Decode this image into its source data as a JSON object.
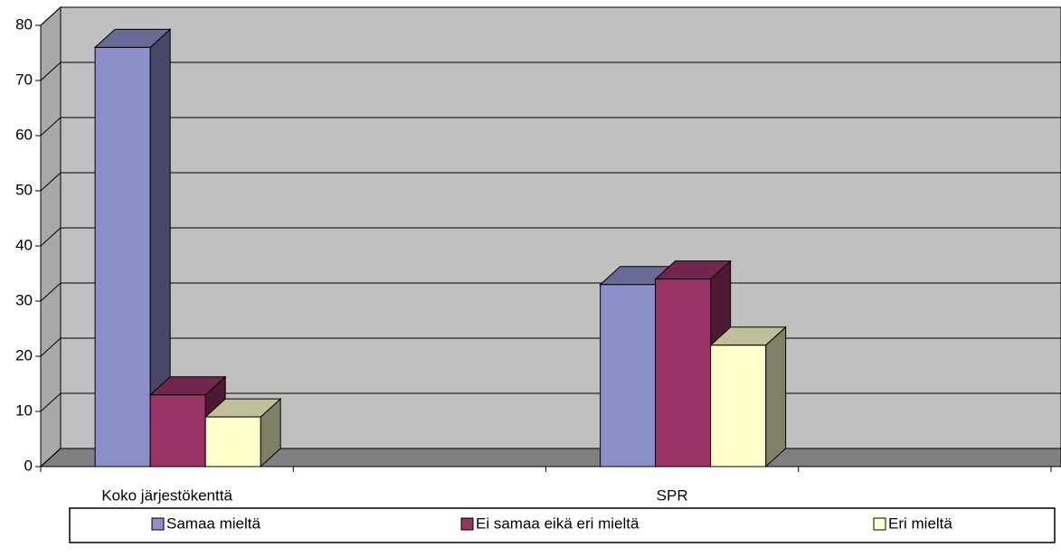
{
  "chart_data": {
    "type": "bar3d",
    "categories": [
      "Koko järjestökenttä",
      null,
      "SPR",
      null
    ],
    "series": [
      {
        "name": "Samaa mieltä",
        "color": "#8c8fc9",
        "values": [
          76,
          null,
          33,
          null
        ]
      },
      {
        "name": "Ei samaa eikä eri mieltä",
        "color": "#993366",
        "values": [
          13,
          null,
          34,
          null
        ]
      },
      {
        "name": "Eri mieltä",
        "color": "#ffffcc",
        "values": [
          9,
          null,
          22,
          null
        ]
      }
    ],
    "ylim": [
      0,
      80
    ],
    "yticks": [
      0,
      10,
      20,
      30,
      40,
      50,
      60,
      70,
      80
    ],
    "grid": true,
    "legend": "bottom"
  }
}
